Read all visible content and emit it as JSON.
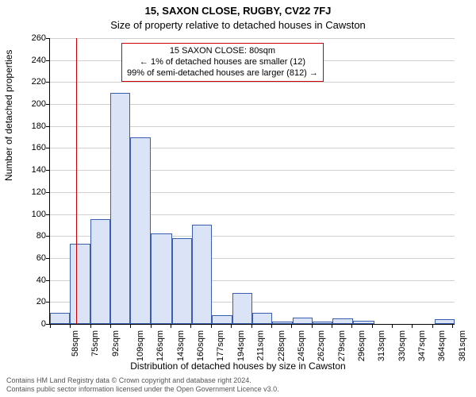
{
  "title_line1": "15, SAXON CLOSE, RUGBY, CV22 7FJ",
  "title_line2": "Size of property relative to detached houses in Cawston",
  "xlabel": "Distribution of detached houses by size in Cawston",
  "ylabel": "Number of detached properties",
  "footer_line1": "Contains HM Land Registry data © Crown copyright and database right 2024.",
  "footer_line2": "Contains public sector information licensed under the Open Government Licence v3.0.",
  "info_box": {
    "line1": "15 SAXON CLOSE: 80sqm",
    "line2": "← 1% of detached houses are smaller (12)",
    "line3": "99% of semi-detached houses are larger (812) →"
  },
  "chart": {
    "type": "histogram",
    "ylim": [
      0,
      260
    ],
    "ytick_step": 20,
    "xlim": [
      58,
      400
    ],
    "xtick_start": 58,
    "xtick_step": 17,
    "xtick_suffix": "sqm",
    "marker_x": 80,
    "bar_fill": "#dbe4f7",
    "bar_border": "#3a5fb0",
    "marker_color": "#cc0000",
    "grid_color": "#d0d0d0",
    "background_color": "#ffffff",
    "bars": [
      {
        "x0": 58,
        "x1": 75,
        "y": 10
      },
      {
        "x0": 75,
        "x1": 92,
        "y": 73
      },
      {
        "x0": 92,
        "x1": 109,
        "y": 95
      },
      {
        "x0": 109,
        "x1": 126,
        "y": 210
      },
      {
        "x0": 126,
        "x1": 143,
        "y": 170
      },
      {
        "x0": 143,
        "x1": 161,
        "y": 82
      },
      {
        "x0": 161,
        "x1": 178,
        "y": 78
      },
      {
        "x0": 178,
        "x1": 195,
        "y": 90
      },
      {
        "x0": 195,
        "x1": 212,
        "y": 8
      },
      {
        "x0": 212,
        "x1": 229,
        "y": 28
      },
      {
        "x0": 229,
        "x1": 246,
        "y": 10
      },
      {
        "x0": 246,
        "x1": 263,
        "y": 2
      },
      {
        "x0": 263,
        "x1": 280,
        "y": 6
      },
      {
        "x0": 280,
        "x1": 297,
        "y": 2
      },
      {
        "x0": 297,
        "x1": 314,
        "y": 5
      },
      {
        "x0": 314,
        "x1": 332,
        "y": 3
      },
      {
        "x0": 383,
        "x1": 400,
        "y": 4
      }
    ]
  }
}
